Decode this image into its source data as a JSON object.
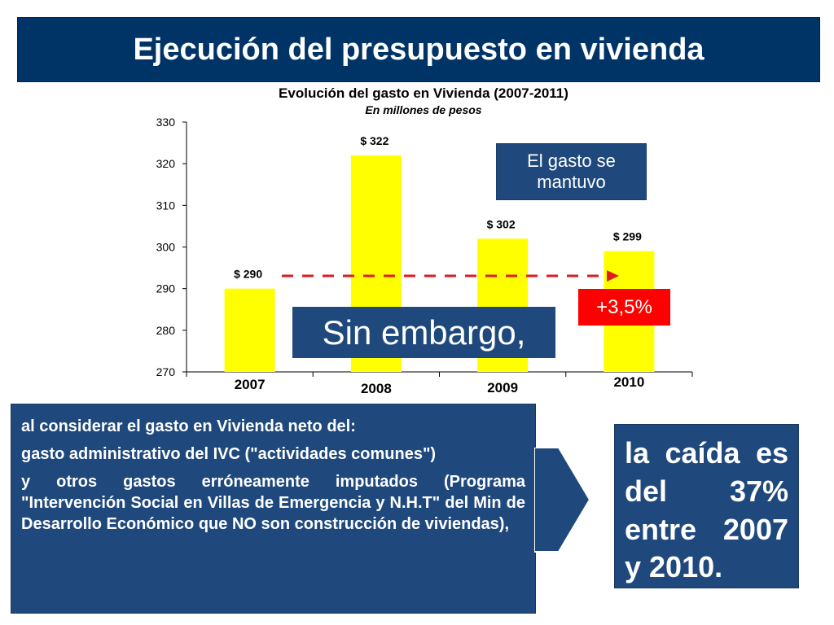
{
  "title": "Ejecución del presupuesto en vivienda",
  "chart_data": {
    "type": "bar",
    "title": "Evolución del gasto en Vivienda  (2007-2011)",
    "subtitle": "En millones de pesos",
    "categories": [
      "2007",
      "2008",
      "2009",
      "2010"
    ],
    "values": [
      290,
      322,
      302,
      299
    ],
    "data_labels": [
      "$ 290",
      "$ 322",
      "$ 302",
      "$ 299"
    ],
    "yticks": [
      "270",
      "280",
      "290",
      "300",
      "310",
      "320",
      "330"
    ],
    "ylim": [
      270,
      330
    ],
    "bar_color": "#ffff00",
    "arrow_color": "#e31a1c"
  },
  "callouts": {
    "mantuvo": "El gasto se mantuvo",
    "pct": "+3,5%",
    "sin_embargo": "Sin embargo,"
  },
  "left_box": {
    "p1": "al considerar el gasto en Vivienda neto del:",
    "p2": "gasto administrativo del IVC (\"actividades comunes\")",
    "p3": "y otros gastos erróneamente imputados (Programa \"Intervención Social en Villas de Emergencia y N.H.T\" del Min de Desarrollo Económico que NO son construcción de viviendas),"
  },
  "right_box": "la caída es del 37% entre 2007 y 2010."
}
